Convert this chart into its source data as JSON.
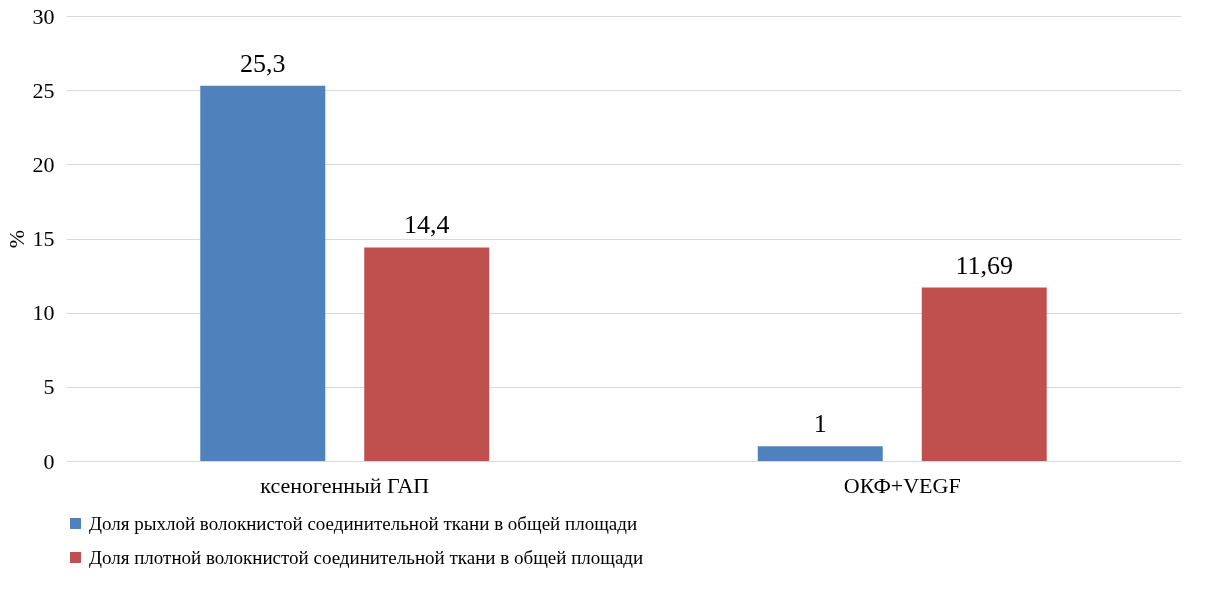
{
  "chart_data": {
    "type": "bar",
    "ylabel": "%",
    "categories": [
      "ксеногенный ГАП",
      "ОКФ+VEGF"
    ],
    "series": [
      {
        "name": "Доля рыхлой волокнистой соединительной ткани в общей площади",
        "color": "#4f81bd",
        "values": [
          25.3,
          1
        ],
        "value_labels": [
          "25,3",
          "1"
        ]
      },
      {
        "name": "Доля плотной волокнистой соединительной ткани в общей площади",
        "color": "#c0504d",
        "values": [
          14.4,
          11.69
        ],
        "value_labels": [
          "14,4",
          "11,69"
        ]
      }
    ],
    "ylim": [
      0,
      30
    ],
    "yticks": [
      0,
      5,
      10,
      15,
      20,
      25,
      30
    ],
    "grid": "y",
    "legend": "bottom"
  }
}
